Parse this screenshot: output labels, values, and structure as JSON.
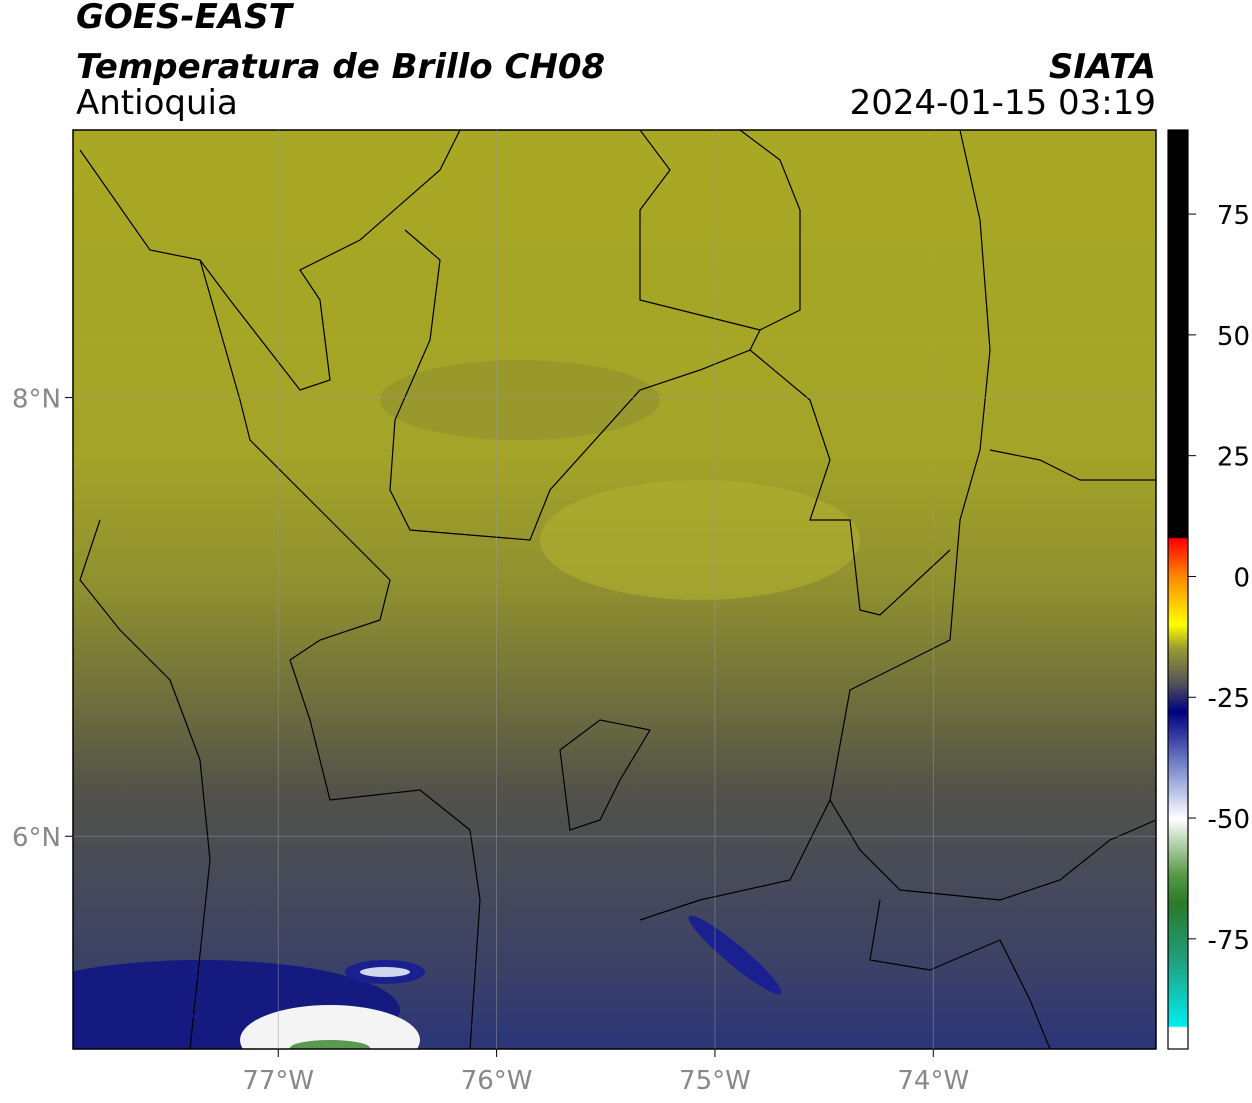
{
  "header": {
    "title": "GOES-EAST",
    "subtitle": "Temperatura de Brillo CH08",
    "region": "Antioquia",
    "source": "SIATA",
    "timestamp": "2024-01-15 03:19"
  },
  "map": {
    "lon_range": [
      -77.94,
      -72.98
    ],
    "lat_range": [
      5.03,
      9.22
    ],
    "lon_ticks": [
      {
        "value": -77,
        "label": "77°W"
      },
      {
        "value": -76,
        "label": "76°W"
      },
      {
        "value": -75,
        "label": "75°W"
      },
      {
        "value": -74,
        "label": "74°W"
      }
    ],
    "lat_ticks": [
      {
        "value": 8,
        "label": "8°N"
      },
      {
        "value": 6,
        "label": "6°N"
      }
    ],
    "grid": true
  },
  "colorbar": {
    "range": [
      -97.8,
      92.4
    ],
    "ticks": [
      75,
      50,
      25,
      0,
      -25,
      -50,
      -75
    ]
  }
}
